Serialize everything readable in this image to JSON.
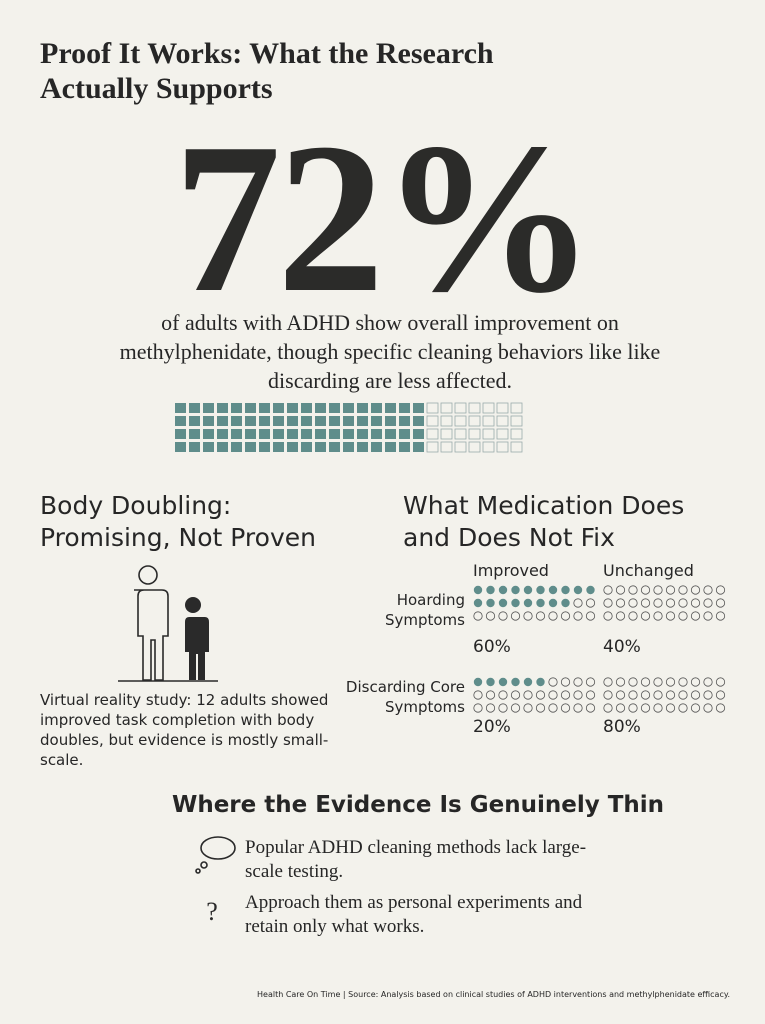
{
  "title": "Proof It Works: What the Research Actually Supports",
  "headline": {
    "stat": {
      "value": 72,
      "label": "72%"
    },
    "text": "of adults with ADHD show overall improvement on methylphenidate, though specific cleaning behaviors like like discarding are less affected."
  },
  "body_doubling": {
    "title": "Body Doubling: Promising, Not Proven",
    "text": "Virtual reality study: 12 adults showed improved task completion with body doubles, but evidence is mostly small-scale."
  },
  "medication": {
    "title": "What Medication Does and Does Not Fix",
    "columns": [
      "Improved",
      "Unchanged"
    ],
    "rows": [
      {
        "label": "Hoarding Symptoms",
        "values": [
          {
            "value": 60,
            "label": "60%"
          },
          {
            "value": 40,
            "label": "40%"
          }
        ]
      },
      {
        "label": "Discarding Core Symptoms",
        "values": [
          {
            "value": 20,
            "label": "20%"
          },
          {
            "value": 80,
            "label": "80%"
          }
        ]
      }
    ]
  },
  "evidence": {
    "title": "Where the Evidence Is Genuinely Thin",
    "items": [
      "Popular ADHD cleaning methods lack large-scale testing.",
      "Approach them as personal experiments and retain only what works."
    ]
  },
  "footer": "Health Care On Time | Source: Analysis based on clinical studies of ADHD interventions and methylphenidate efficacy."
}
